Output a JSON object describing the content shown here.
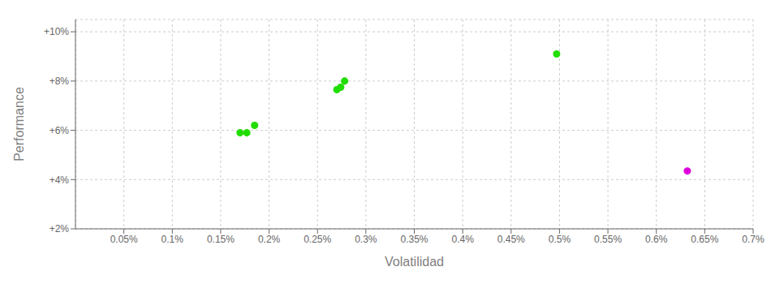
{
  "chart_data": {
    "type": "scatter",
    "xlabel": "Volatilidad",
    "ylabel": "Performance",
    "xlim": [
      0.0,
      0.007
    ],
    "ylim": [
      0.02,
      0.105
    ],
    "xticks": [
      {
        "value": 0.0005,
        "label": "0.05%"
      },
      {
        "value": 0.001,
        "label": "0.1%"
      },
      {
        "value": 0.0015,
        "label": "0.15%"
      },
      {
        "value": 0.002,
        "label": "0.2%"
      },
      {
        "value": 0.0025,
        "label": "0.25%"
      },
      {
        "value": 0.003,
        "label": "0.3%"
      },
      {
        "value": 0.0035,
        "label": "0.35%"
      },
      {
        "value": 0.004,
        "label": "0.4%"
      },
      {
        "value": 0.0045,
        "label": "0.45%"
      },
      {
        "value": 0.005,
        "label": "0.5%"
      },
      {
        "value": 0.0055,
        "label": "0.55%"
      },
      {
        "value": 0.006,
        "label": "0.6%"
      },
      {
        "value": 0.0065,
        "label": "0.65%"
      },
      {
        "value": 0.007,
        "label": "0.7%"
      }
    ],
    "yticks": [
      {
        "value": 0.02,
        "label": "+2%"
      },
      {
        "value": 0.04,
        "label": "+4%"
      },
      {
        "value": 0.06,
        "label": "+6%"
      },
      {
        "value": 0.08,
        "label": "+8%"
      },
      {
        "value": 0.1,
        "label": "+10%"
      }
    ],
    "grid": true,
    "series": [
      {
        "color": "#22dd00",
        "x": [
          0.0017,
          0.00177,
          0.00185,
          0.0027,
          0.00274,
          0.00278,
          0.00497
        ],
        "values": [
          0.059,
          0.059,
          0.062,
          0.0765,
          0.0775,
          0.08,
          0.091
        ]
      },
      {
        "color": "#dd00dd",
        "x": [
          0.00632
        ],
        "values": [
          0.0435
        ]
      }
    ]
  }
}
